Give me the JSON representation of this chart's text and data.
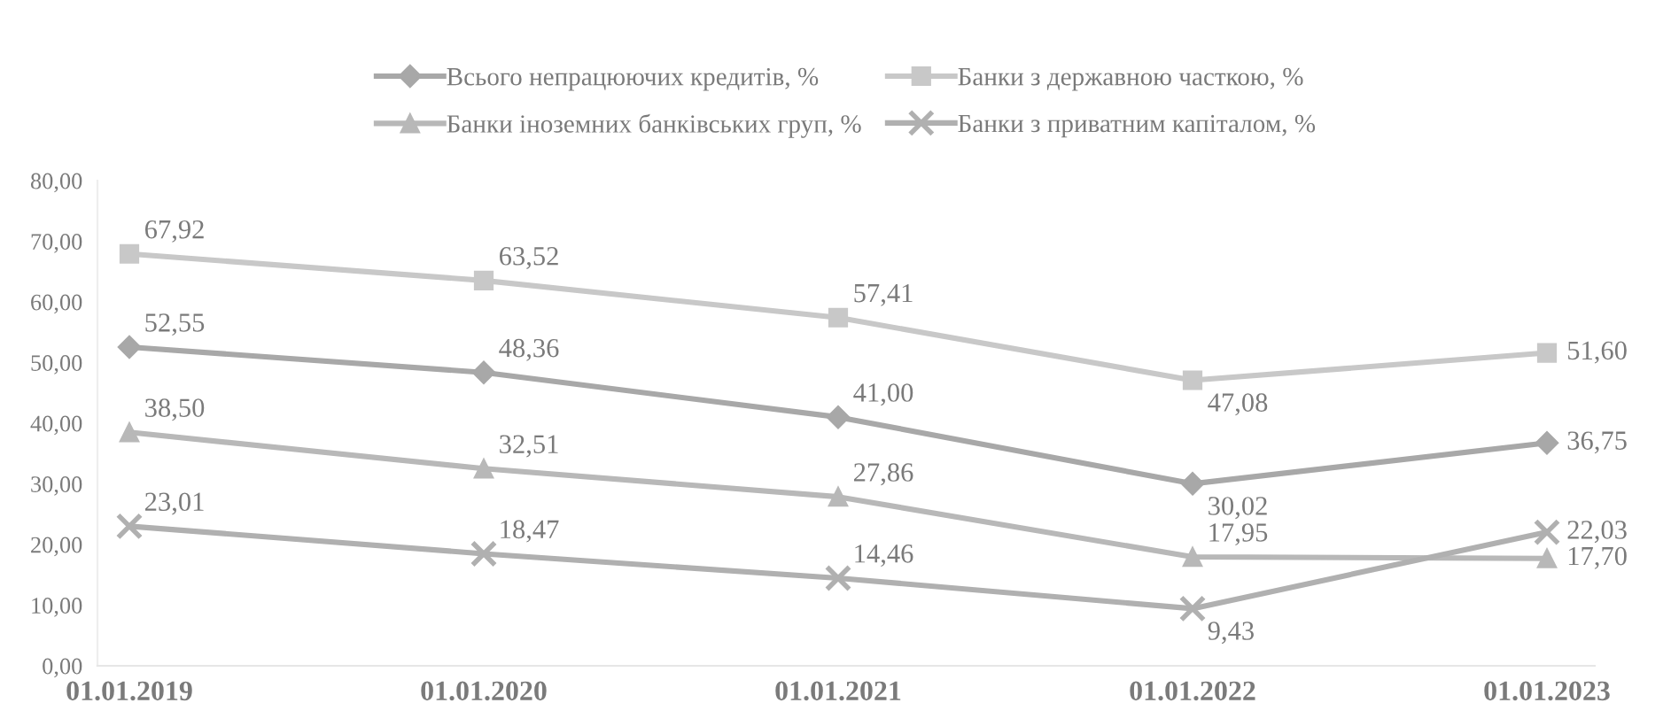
{
  "chart_data": {
    "type": "line",
    "categories": [
      "01.01.2019",
      "01.01.2020",
      "01.01.2021",
      "01.01.2022",
      "01.01.2023"
    ],
    "series": [
      {
        "name": "Всього непрацюючих кредитів, %",
        "color": "#a8a8a8",
        "marker": "diamond",
        "values": [
          52.55,
          48.36,
          41.0,
          30.02,
          36.75
        ],
        "value_labels": [
          "52,55",
          "48,36",
          "41,00",
          "30,02",
          "36,75"
        ]
      },
      {
        "name": "Банки з державною часткою, %",
        "color": "#c8c8c8",
        "marker": "square",
        "values": [
          67.92,
          63.52,
          57.41,
          47.08,
          51.6
        ],
        "value_labels": [
          "67,92",
          "63,52",
          "57,41",
          "47,08",
          "51,60"
        ]
      },
      {
        "name": "Банки іноземних банківських груп, %",
        "color": "#b8b8b8",
        "marker": "triangle",
        "values": [
          38.5,
          32.51,
          27.86,
          17.95,
          17.7
        ],
        "value_labels": [
          "38,50",
          "32,51",
          "27,86",
          "17,95",
          "17,70"
        ]
      },
      {
        "name": "Банки з приватним капіталом, %",
        "color": "#b0b0b0",
        "marker": "cross",
        "values": [
          23.01,
          18.47,
          14.46,
          9.43,
          22.03
        ],
        "value_labels": [
          "23,01",
          "18,47",
          "14,46",
          "9,43",
          "22,03"
        ]
      }
    ],
    "ylim": [
      0,
      80
    ],
    "yticks": [
      {
        "value": 0,
        "label": "0,00"
      },
      {
        "value": 10,
        "label": "10,00"
      },
      {
        "value": 20,
        "label": "20,00"
      },
      {
        "value": 30,
        "label": "30,00"
      },
      {
        "value": 40,
        "label": "40,00"
      },
      {
        "value": 50,
        "label": "50,00"
      },
      {
        "value": 60,
        "label": "60,00"
      },
      {
        "value": 70,
        "label": "70,00"
      },
      {
        "value": 80,
        "label": "80,00"
      }
    ],
    "grid": false,
    "legend": "top",
    "line_style": "solid"
  }
}
